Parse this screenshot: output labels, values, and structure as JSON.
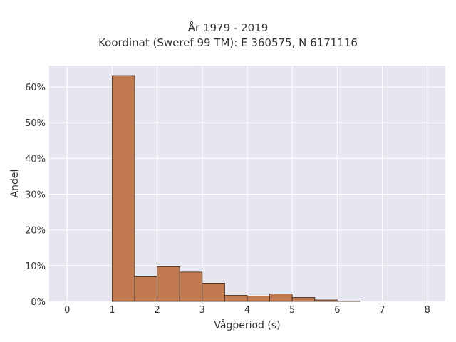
{
  "chart_data": {
    "type": "bar",
    "title": "År 1979 - 2019",
    "subtitle": "Koordinat (Sweref 99 TM): E 360575, N 6171116",
    "xlabel": "Vågperiod (s)",
    "ylabel": "Andel",
    "xlim": [
      -0.4,
      8.4
    ],
    "ylim": [
      0,
      0.66
    ],
    "xticks": [
      0,
      1,
      2,
      3,
      4,
      5,
      6,
      7,
      8
    ],
    "yticks": [
      0,
      0.1,
      0.2,
      0.3,
      0.4,
      0.5,
      0.6
    ],
    "ytick_labels": [
      "0%",
      "10%",
      "20%",
      "30%",
      "40%",
      "50%",
      "60%"
    ],
    "grid": true,
    "bin_width": 0.5,
    "bins": [
      {
        "x0": 1.0,
        "x1": 1.5,
        "value": 0.632
      },
      {
        "x0": 1.5,
        "x1": 2.0,
        "value": 0.069
      },
      {
        "x0": 2.0,
        "x1": 2.5,
        "value": 0.097
      },
      {
        "x0": 2.5,
        "x1": 3.0,
        "value": 0.082
      },
      {
        "x0": 3.0,
        "x1": 3.5,
        "value": 0.051
      },
      {
        "x0": 3.5,
        "x1": 4.0,
        "value": 0.017
      },
      {
        "x0": 4.0,
        "x1": 4.5,
        "value": 0.015
      },
      {
        "x0": 4.5,
        "x1": 5.0,
        "value": 0.021
      },
      {
        "x0": 5.0,
        "x1": 5.5,
        "value": 0.011
      },
      {
        "x0": 5.5,
        "x1": 6.0,
        "value": 0.004
      },
      {
        "x0": 6.0,
        "x1": 6.5,
        "value": 0.001
      }
    ],
    "colors": {
      "bar_fill": "#c17a50",
      "bar_edge": "#3a2a20",
      "plot_background": "#e5e6f0",
      "grid": "#ffffff"
    }
  }
}
